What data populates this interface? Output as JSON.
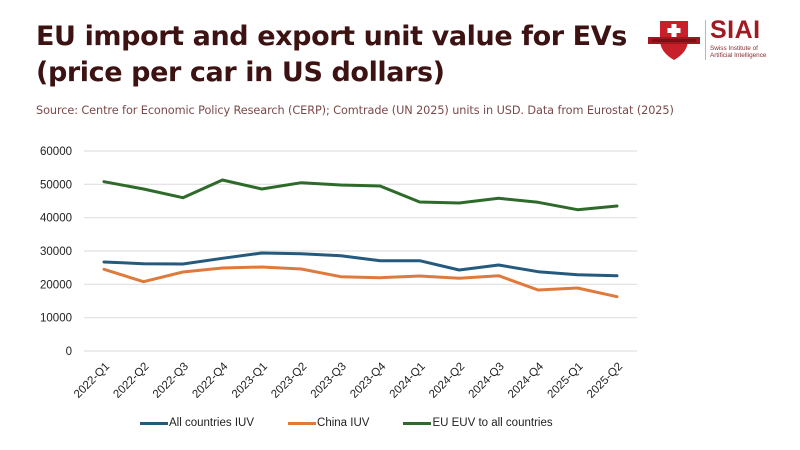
{
  "header": {
    "title_line1": "EU import and export unit value for EVs",
    "title_line2": "(price per car in US dollars)",
    "source": "Source: Centre for Economic Policy Research (CERP); Comtrade (UN 2025) units in USD. Data from Eurostat (2025)"
  },
  "logo": {
    "name": "SIAI",
    "subtitle_line1": "Swiss Institute of",
    "subtitle_line2": "Artificial Intelligence",
    "color": "#a11a22"
  },
  "chart_data": {
    "type": "line",
    "title": "EU import and export unit value for EVs (price per car in US dollars)",
    "xlabel": "",
    "ylabel": "",
    "ylim": [
      0,
      60000
    ],
    "yticks": [
      0,
      10000,
      20000,
      30000,
      40000,
      50000,
      60000
    ],
    "grid": true,
    "legend_position": "bottom",
    "categories": [
      "2022-Q1",
      "2022-Q2",
      "2022-Q3",
      "2022-Q4",
      "2023-Q1",
      "2023-Q2",
      "2023-Q3",
      "2023-Q4",
      "2024-Q1",
      "2024-Q2",
      "2024-Q3",
      "2024-Q4",
      "2025-Q1",
      "2025-Q2"
    ],
    "series": [
      {
        "name": "All countries IUV",
        "color": "#245a7e",
        "values": [
          26700,
          26200,
          26100,
          27800,
          29400,
          29200,
          28600,
          27100,
          27100,
          24300,
          25800,
          23800,
          22900,
          22600
        ]
      },
      {
        "name": "China IUV",
        "color": "#e07a3c",
        "values": [
          24500,
          20800,
          23700,
          24900,
          25200,
          24600,
          22300,
          22000,
          22500,
          21800,
          22600,
          18300,
          18900,
          16300
        ]
      },
      {
        "name": "EU EUV to all countries",
        "color": "#2e6b2a",
        "values": [
          50800,
          48600,
          46000,
          51300,
          48600,
          50500,
          49800,
          49500,
          44700,
          44400,
          45800,
          44600,
          42400,
          43500
        ]
      }
    ]
  }
}
